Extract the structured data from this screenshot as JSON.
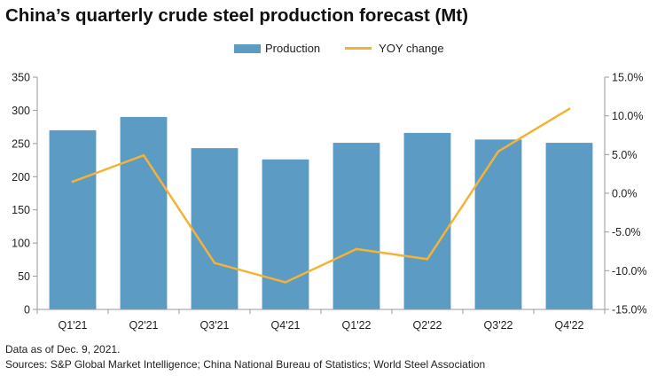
{
  "chart_data": {
    "type": "bar+line",
    "title": "China’s quarterly crude steel production forecast (Mt)",
    "categories": [
      "Q1'21",
      "Q2'21",
      "Q3'21",
      "Q4'21",
      "Q1'22",
      "Q2'22",
      "Q3'22",
      "Q4'22"
    ],
    "series": [
      {
        "name": "Production",
        "type": "bar",
        "axis": "left",
        "color": "#5b9bc4",
        "values": [
          270,
          290,
          243,
          226,
          251,
          266,
          256,
          251
        ]
      },
      {
        "name": "YOY change",
        "type": "line",
        "axis": "right",
        "color": "#f5b335",
        "values": [
          1.5,
          4.9,
          -9.0,
          -11.5,
          -7.2,
          -8.5,
          5.4,
          10.9
        ]
      }
    ],
    "ylim_left": [
      0,
      350
    ],
    "yticks_left": [
      0,
      50,
      100,
      150,
      200,
      250,
      300,
      350
    ],
    "ytick_labels_left": [
      "0",
      "50",
      "100",
      "150",
      "200",
      "250",
      "300",
      "350"
    ],
    "ylim_right": [
      -15,
      15
    ],
    "yticks_right": [
      -15,
      -10,
      -5,
      0,
      5,
      10,
      15
    ],
    "ytick_labels_right": [
      "-15.0%",
      "-10.0%",
      "-5.0%",
      "0.0%",
      "5.0%",
      "10.0%",
      "15.0%"
    ],
    "grid": false,
    "legend_position": "top-center"
  },
  "notes": {
    "data_date": "Data as of Dec. 9, 2021.",
    "sources": "Sources: S&P Global Market Intelligence; China National Bureau of Statistics; World Steel Association"
  }
}
